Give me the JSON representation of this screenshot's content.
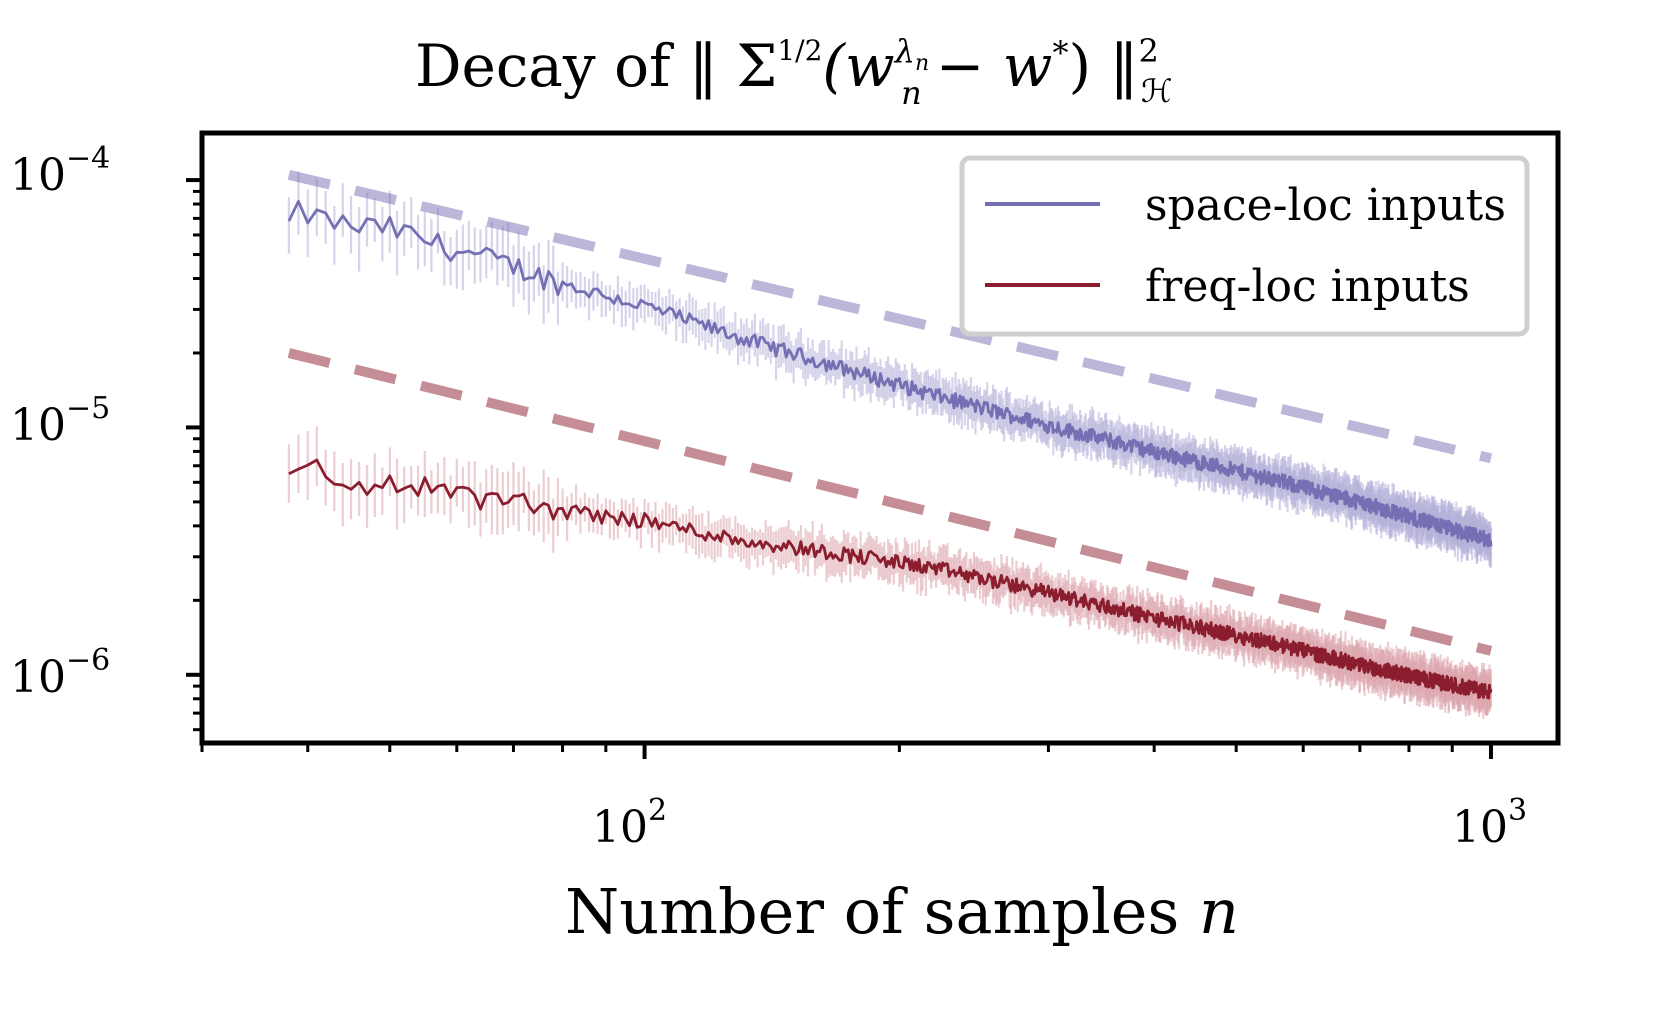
{
  "chart_data": {
    "type": "line",
    "title": "Decay of ‖ Σ^(1/2) (w_n^{λ_n} − w*) ‖²_ℋ",
    "title_parts": {
      "prefix": "Decay of ‖ Σ",
      "exponent": "1/2",
      "open": "(w",
      "w_sup": "λ",
      "w_sup_sub": "n",
      "w_sub": "n",
      "minus": "− w",
      "star": "*",
      "close": ") ‖",
      "norm_sup": "2",
      "norm_sub": "ℋ"
    },
    "xlabel": "Number of samples n",
    "xlabel_parts": {
      "text": "Number of samples ",
      "var": "n"
    },
    "xscale": "log",
    "yscale": "log",
    "xlim": [
      30,
      1200
    ],
    "ylim": [
      5.3e-07,
      0.000155
    ],
    "x_ticks": [
      {
        "value": 100,
        "base": "10",
        "exp": "2"
      },
      {
        "value": 1000,
        "base": "10",
        "exp": "3"
      }
    ],
    "y_ticks": [
      {
        "value": 0.0001,
        "base": "10",
        "exp": "−4"
      },
      {
        "value": 1e-05,
        "base": "10",
        "exp": "−5"
      },
      {
        "value": 1e-06,
        "base": "10",
        "exp": "−6"
      }
    ],
    "legend_position": "top-right",
    "series": [
      {
        "name": "space-loc inputs",
        "color": "#7570b3",
        "band_color": "#b4b1d8",
        "points": [
          [
            38,
            6.6e-05
          ],
          [
            39,
            7.4e-05
          ],
          [
            45,
            6.5e-05
          ],
          [
            50,
            6.4e-05
          ],
          [
            60,
            5.2e-05
          ],
          [
            70,
            4.5e-05
          ],
          [
            80,
            3.8e-05
          ],
          [
            100,
            3.1e-05
          ],
          [
            130,
            2.3e-05
          ],
          [
            170,
            1.75e-05
          ],
          [
            220,
            1.35e-05
          ],
          [
            300,
            1.02e-05
          ],
          [
            400,
            8e-06
          ],
          [
            550,
            6.2e-06
          ],
          [
            700,
            5e-06
          ],
          [
            850,
            4.1e-06
          ],
          [
            1000,
            3.5e-06
          ]
        ],
        "trend": {
          "start": [
            38,
            0.000105
          ],
          "end": [
            1000,
            7.5e-06
          ]
        }
      },
      {
        "name": "freq-loc inputs",
        "color": "#8b1e2e",
        "band_color": "#dca5ad",
        "points": [
          [
            38,
            6e-06
          ],
          [
            40,
            7.2e-06
          ],
          [
            45,
            5.6e-06
          ],
          [
            50,
            6e-06
          ],
          [
            60,
            5.4e-06
          ],
          [
            70,
            5e-06
          ],
          [
            80,
            4.6e-06
          ],
          [
            100,
            4.2e-06
          ],
          [
            130,
            3.5e-06
          ],
          [
            170,
            3.1e-06
          ],
          [
            220,
            2.7e-06
          ],
          [
            300,
            2.15e-06
          ],
          [
            400,
            1.7e-06
          ],
          [
            550,
            1.35e-06
          ],
          [
            700,
            1.1e-06
          ],
          [
            850,
            9.5e-07
          ],
          [
            1000,
            8.5e-07
          ]
        ],
        "trend": {
          "start": [
            38,
            2e-05
          ],
          "end": [
            1000,
            1.25e-06
          ]
        }
      }
    ]
  }
}
